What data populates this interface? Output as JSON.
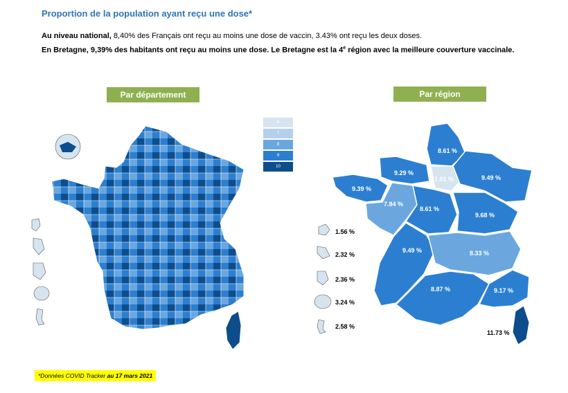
{
  "title": "Proportion de la population ayant reçu une dose*",
  "intro": {
    "line1_lead": "Au niveau national,",
    "line1_rest": " 8,40% des Français ont reçu au moins une dose de vaccin, 3.43% ont reçu les deux doses.",
    "line2_a": "En Bretagne, 9,39% des habitants ont reçu au moins une dose. Le Bretagne est la 4",
    "line2_sup": "e",
    "line2_b": " région avec la meilleure couverture vaccinale."
  },
  "buttons": {
    "departement": "Par département",
    "region": "Par région"
  },
  "legend": [
    {
      "label": "6",
      "color": "#d6e4f0"
    },
    {
      "label": "7",
      "color": "#b4d0ea"
    },
    {
      "label": "8",
      "color": "#6ba7de"
    },
    {
      "label": "9",
      "color": "#2c7fd0"
    },
    {
      "label": "10",
      "color": "#0e4d8c"
    }
  ],
  "regions": [
    {
      "label": "8.61 %"
    },
    {
      "label": "9.29 %"
    },
    {
      "label": "7.01 %"
    },
    {
      "label": "9.49 %"
    },
    {
      "label": "9.39 %"
    },
    {
      "label": "7.84 %"
    },
    {
      "label": "8.61 %"
    },
    {
      "label": "9.68 %"
    },
    {
      "label": "9.49 %"
    },
    {
      "label": "8.33 %"
    },
    {
      "label": "8.87 %"
    },
    {
      "label": "9.17 %"
    },
    {
      "label": "11.73 %"
    }
  ],
  "overseas": [
    {
      "label": "1.56 %"
    },
    {
      "label": "2.32 %"
    },
    {
      "label": "2.36 %"
    },
    {
      "label": "3.24 %"
    },
    {
      "label": "2.58 %"
    }
  ],
  "source": {
    "italic": "*Données COVID Tracker ",
    "bold": "au 17 mars 2021"
  },
  "colors": {
    "title": "#2e74b5",
    "button": "#8fb050",
    "highlight": "#ffff00",
    "map_fill": "#2c7fd0",
    "ile_de_france": "#d6e4f0"
  }
}
